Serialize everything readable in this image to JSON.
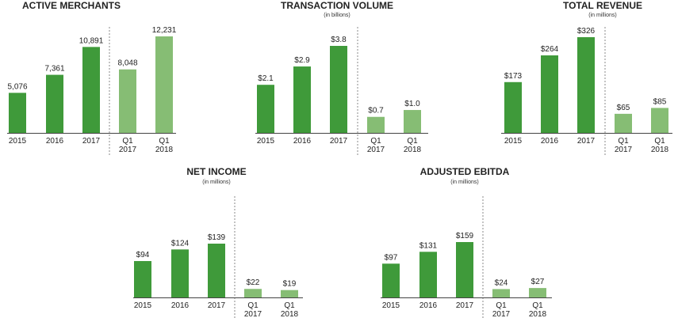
{
  "colors": {
    "annual": "#3f9a3a",
    "quarterly": "#86bd74"
  },
  "chart_data": [
    {
      "type": "bar",
      "title": "ACTIVE MERCHANTS",
      "subtitle": "",
      "categories": [
        [
          "2015"
        ],
        [
          "2016"
        ],
        [
          "2017"
        ],
        [
          "Q1",
          "2017"
        ],
        [
          "Q1",
          "2018"
        ]
      ],
      "values": [
        5076,
        7361,
        10891,
        8048,
        12231
      ],
      "labels": [
        "5,076",
        "7,361",
        "10,891",
        "8,048",
        "12,231"
      ],
      "groups": [
        "annual",
        "annual",
        "annual",
        "quarterly",
        "quarterly"
      ],
      "ylim": [
        0,
        12231
      ]
    },
    {
      "type": "bar",
      "title": "TRANSACTION VOLUME",
      "subtitle": "(in billions)",
      "categories": [
        [
          "2015"
        ],
        [
          "2016"
        ],
        [
          "2017"
        ],
        [
          "Q1",
          "2017"
        ],
        [
          "Q1",
          "2018"
        ]
      ],
      "values": [
        2.1,
        2.9,
        3.8,
        0.7,
        1.0
      ],
      "labels": [
        "$2.1",
        "$2.9",
        "$3.8",
        "$0.7",
        "$1.0"
      ],
      "groups": [
        "annual",
        "annual",
        "annual",
        "quarterly",
        "quarterly"
      ],
      "ylim": [
        0,
        3.8
      ]
    },
    {
      "type": "bar",
      "title": "TOTAL REVENUE",
      "subtitle": "(in millions)",
      "categories": [
        [
          "2015"
        ],
        [
          "2016"
        ],
        [
          "2017"
        ],
        [
          "Q1",
          "2017"
        ],
        [
          "Q1",
          "2018"
        ]
      ],
      "values": [
        173,
        264,
        326,
        65,
        85
      ],
      "labels": [
        "$173",
        "$264",
        "$326",
        "$65",
        "$85"
      ],
      "groups": [
        "annual",
        "annual",
        "annual",
        "quarterly",
        "quarterly"
      ],
      "ylim": [
        0,
        326
      ]
    },
    {
      "type": "bar",
      "title": "NET INCOME",
      "subtitle": "(in millions)",
      "categories": [
        [
          "2015"
        ],
        [
          "2016"
        ],
        [
          "2017"
        ],
        [
          "Q1",
          "2017"
        ],
        [
          "Q1",
          "2018"
        ]
      ],
      "values": [
        94,
        124,
        139,
        22,
        19
      ],
      "labels": [
        "$94",
        "$124",
        "$139",
        "$22",
        "$19"
      ],
      "groups": [
        "annual",
        "annual",
        "annual",
        "quarterly",
        "quarterly"
      ],
      "ylim": [
        0,
        139
      ]
    },
    {
      "type": "bar",
      "title": "ADJUSTED EBITDA",
      "subtitle": "(in millions)",
      "categories": [
        [
          "2015"
        ],
        [
          "2016"
        ],
        [
          "2017"
        ],
        [
          "Q1",
          "2017"
        ],
        [
          "Q1",
          "2018"
        ]
      ],
      "values": [
        97,
        131,
        159,
        24,
        27
      ],
      "labels": [
        "$97",
        "$131",
        "$159",
        "$24",
        "$27"
      ],
      "groups": [
        "annual",
        "annual",
        "annual",
        "quarterly",
        "quarterly"
      ],
      "ylim": [
        0,
        159
      ]
    }
  ]
}
